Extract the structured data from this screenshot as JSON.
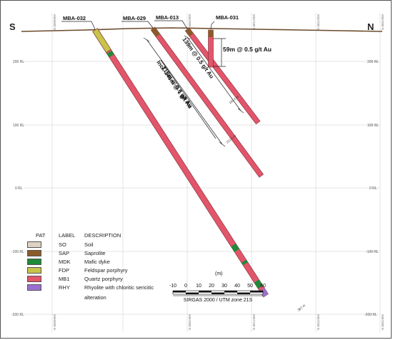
{
  "section": {
    "left_dir": "S",
    "right_dir": "N",
    "northings": [
      "6966900 N",
      "6967000 N",
      "6967100 N",
      "6967200 N",
      "6967300 N"
    ],
    "rl_labels": [
      "200 RL",
      "100 RL",
      "0 RL",
      "-100 RL",
      "-200 RL"
    ],
    "holes": [
      "MBA-032",
      "MBA-029",
      "MBA-013",
      "MBA-031"
    ],
    "depths": [
      "139.2 m",
      "212.6 m",
      "387 m"
    ],
    "intercepts": {
      "mba031": "59m @ 0.5 g/t Au",
      "mba013": "139m @ 0.5 g/t Au",
      "mba029_line1": "213m @ 0.6 g/t Au",
      "mba029_line2": "Incl. 146m @ 1 g/t Au"
    }
  },
  "legend": {
    "headers": {
      "pat": "PAT",
      "label": "LABEL",
      "description": "DESCRIPTION"
    },
    "items": [
      {
        "code": "SO",
        "description": "Soil",
        "color": "#ddd2c4"
      },
      {
        "code": "SAP",
        "description": "Saprolite",
        "color": "#8b5a2b"
      },
      {
        "code": "MDK",
        "description": "Mafic dyke",
        "color": "#1f8a3a"
      },
      {
        "code": "FDP",
        "description": "Feldspar porphyry",
        "color": "#c8c44a"
      },
      {
        "code": "MB1",
        "description": "Quartz porphyry",
        "color": "#e2556a"
      },
      {
        "code": "RHY",
        "description": "Rhyolite with chloritic sericitic",
        "description2": "alteration",
        "color": "#9b6fd0"
      }
    ]
  },
  "scale_bar": {
    "unit": "(m)",
    "ticks": [
      "-10",
      "0",
      "10",
      "20",
      "30",
      "40",
      "50",
      "60"
    ],
    "crs": "SIRGAS 2000 / UTM zone 21S"
  },
  "colors": {
    "quartz_porphyry": "#e2556a",
    "saprolite": "#8b5a2b",
    "mafic_dyke": "#1f8a3a",
    "feldspar_porphyry": "#c8c44a",
    "rhyolite": "#9b6fd0",
    "surface": "#6b4a2a",
    "grid": "#c8c8c8"
  }
}
